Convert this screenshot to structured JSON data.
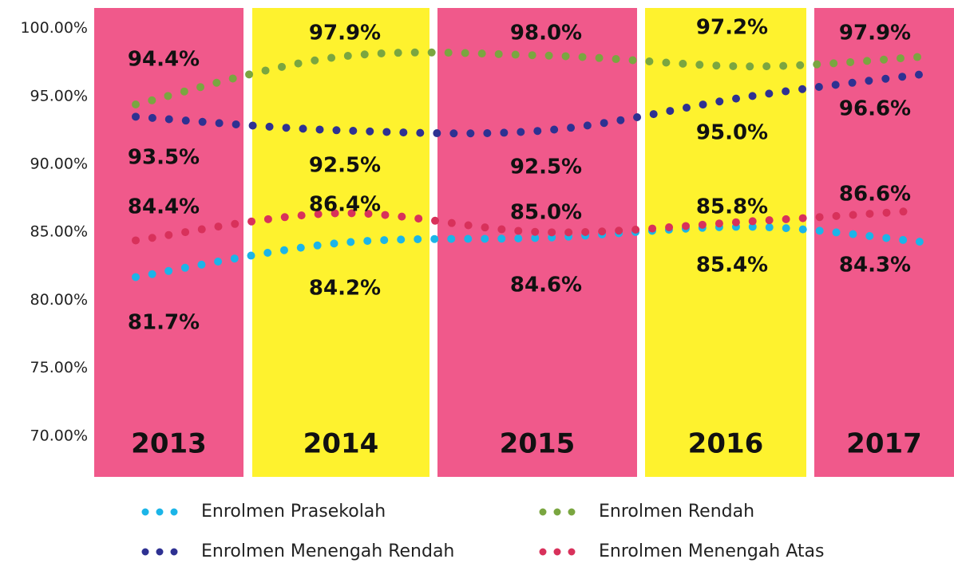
{
  "chart_data": {
    "type": "line",
    "categories": [
      "2013",
      "2014",
      "2015",
      "2016",
      "2017"
    ],
    "band_colors": [
      "#f0598b",
      "#fef22e",
      "#f0598b",
      "#fef22e",
      "#f0598b"
    ],
    "ylim": [
      67,
      101.5
    ],
    "yticks": [
      {
        "value": 70,
        "label": "70.00%"
      },
      {
        "value": 75,
        "label": "75.00%"
      },
      {
        "value": 80,
        "label": "80.00%"
      },
      {
        "value": 85,
        "label": "85.00%"
      },
      {
        "value": 90,
        "label": "90.00%"
      },
      {
        "value": 95,
        "label": "95.00%"
      },
      {
        "value": 100,
        "label": "100.00%"
      }
    ],
    "series": [
      {
        "name": "Enrolmen Prasekolah",
        "color": "#1bb5e8",
        "values": [
          81.7,
          84.2,
          84.6,
          85.4,
          84.3
        ],
        "value_labels": [
          "81.7%",
          "84.2%",
          "84.6%",
          "85.4%",
          "84.3%"
        ]
      },
      {
        "name": "Enrolmen Rendah",
        "color": "#7aa640",
        "values": [
          94.4,
          97.9,
          98.0,
          97.2,
          97.9
        ],
        "value_labels": [
          "94.4%",
          "97.9%",
          "98.0%",
          "97.2%",
          "97.9%"
        ]
      },
      {
        "name": "Enrolmen Menengah Rendah",
        "color": "#2e3192",
        "values": [
          93.5,
          92.5,
          92.5,
          95.0,
          96.6
        ],
        "value_labels": [
          "93.5%",
          "92.5%",
          "92.5%",
          "95.0%",
          "96.6%"
        ]
      },
      {
        "name": "Enrolmen Menengah Atas",
        "color": "#d8315b",
        "values": [
          84.4,
          86.4,
          85.0,
          85.8,
          86.6
        ],
        "value_labels": [
          "84.4%",
          "86.4%",
          "85.0%",
          "85.8%",
          "86.6%"
        ]
      }
    ]
  }
}
